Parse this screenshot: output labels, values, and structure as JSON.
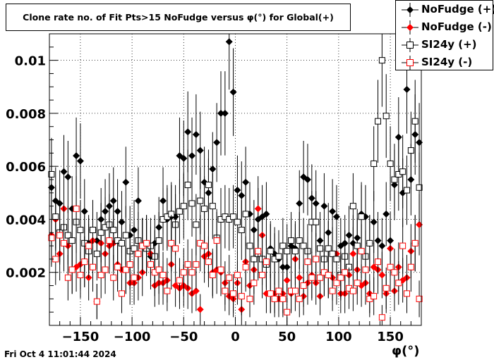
{
  "title": "Clone rate no. of Fit Pts>15 NoFudge versus φ(°) for Global(+)",
  "timestamp": "Fri Oct  4 11:01:44 2024",
  "chart_data": {
    "type": "scatter",
    "xlabel": "φ(°)",
    "ylabel": "",
    "xlim": [
      -180,
      180
    ],
    "ylim": [
      0,
      0.011
    ],
    "xticks": [
      -150,
      -100,
      -50,
      0,
      50,
      100,
      150
    ],
    "xtick_labels": [
      "−150",
      "−100",
      "−50",
      "0",
      "50",
      "100",
      "150"
    ],
    "yticks": [
      0.002,
      0.004,
      0.006,
      0.008,
      0.01
    ],
    "ytick_labels": [
      "0.002",
      "0.004",
      "0.006",
      "0.008",
      "0.01"
    ],
    "grid": true,
    "legend_position": "top-right",
    "series": [
      {
        "name": "NoFudge (+)",
        "marker": "filled-diamond",
        "color": "#000000",
        "x": [
          -178,
          -174,
          -170,
          -166,
          -162,
          -158,
          -154,
          -150,
          -146,
          -142,
          -138,
          -134,
          -130,
          -126,
          -122,
          -118,
          -114,
          -110,
          -106,
          -102,
          -98,
          -94,
          -90,
          -86,
          -82,
          -78,
          -74,
          -70,
          -66,
          -62,
          -58,
          -54,
          -50,
          -46,
          -42,
          -38,
          -34,
          -30,
          -26,
          -22,
          -18,
          -14,
          -10,
          -6,
          -2,
          2,
          6,
          10,
          14,
          18,
          22,
          26,
          30,
          34,
          38,
          42,
          46,
          50,
          54,
          58,
          62,
          66,
          70,
          74,
          78,
          82,
          86,
          90,
          94,
          98,
          102,
          106,
          110,
          114,
          118,
          122,
          126,
          130,
          134,
          138,
          142,
          146,
          150,
          154,
          158,
          162,
          166,
          170,
          174,
          178
        ],
        "y": [
          0.0052,
          0.0047,
          0.0046,
          0.0058,
          0.0056,
          0.0044,
          0.0064,
          0.0062,
          0.0043,
          0.0031,
          0.0036,
          0.0032,
          0.004,
          0.0043,
          0.0045,
          0.0047,
          0.0043,
          0.0039,
          0.0054,
          0.0034,
          0.0036,
          0.0047,
          0.003,
          0.0031,
          0.0026,
          0.0031,
          0.0037,
          0.0047,
          0.004,
          0.0041,
          0.0041,
          0.0064,
          0.0063,
          0.0073,
          0.0064,
          0.0072,
          0.0066,
          0.0054,
          0.005,
          0.0059,
          0.0069,
          0.008,
          0.008,
          0.0107,
          0.0088,
          0.0051,
          0.0049,
          0.0054,
          0.0042,
          0.0036,
          0.004,
          0.0041,
          0.0042,
          0.0029,
          0.0027,
          0.0025,
          0.0022,
          0.0022,
          0.003,
          0.0029,
          0.0046,
          0.0056,
          0.0055,
          0.0048,
          0.0046,
          0.0032,
          0.0045,
          0.0035,
          0.0043,
          0.0041,
          0.003,
          0.0031,
          0.0034,
          0.0031,
          0.0033,
          0.0042,
          0.0041,
          0.0031,
          0.0039,
          0.0032,
          0.003,
          0.0042,
          0.0032,
          0.0053,
          0.0071,
          0.005,
          0.0089,
          0.0055,
          0.0072,
          0.0069
        ]
      },
      {
        "name": "NoFudge (-)",
        "marker": "filled-diamond",
        "color": "#ff0000",
        "x": [
          -178,
          -174,
          -170,
          -166,
          -162,
          -158,
          -154,
          -150,
          -146,
          -142,
          -138,
          -134,
          -130,
          -126,
          -122,
          -118,
          -114,
          -110,
          -106,
          -102,
          -98,
          -94,
          -90,
          -86,
          -82,
          -78,
          -74,
          -70,
          -66,
          -62,
          -58,
          -54,
          -50,
          -46,
          -42,
          -38,
          -34,
          -30,
          -26,
          -22,
          -18,
          -14,
          -10,
          -6,
          -2,
          2,
          6,
          10,
          14,
          18,
          22,
          26,
          30,
          34,
          38,
          42,
          46,
          50,
          54,
          58,
          62,
          66,
          70,
          74,
          78,
          82,
          86,
          90,
          94,
          98,
          102,
          106,
          110,
          114,
          118,
          122,
          126,
          130,
          134,
          138,
          142,
          146,
          150,
          154,
          158,
          162,
          166,
          170,
          174,
          178
        ],
        "y": [
          0.0034,
          0.004,
          0.0027,
          0.0044,
          0.003,
          0.0021,
          0.0022,
          0.0023,
          0.0024,
          0.0018,
          0.0032,
          0.0009,
          0.0031,
          0.0027,
          0.003,
          0.0031,
          0.0023,
          0.0021,
          0.0021,
          0.0016,
          0.0016,
          0.0018,
          0.002,
          0.003,
          0.0027,
          0.0015,
          0.0016,
          0.0016,
          0.0017,
          0.0023,
          0.0015,
          0.0014,
          0.0015,
          0.0014,
          0.0012,
          0.0013,
          0.0006,
          0.0026,
          0.0027,
          0.002,
          0.0021,
          0.002,
          0.0016,
          0.0011,
          0.001,
          0.0016,
          0.0006,
          0.0024,
          0.0015,
          0.0021,
          0.0044,
          0.0034,
          0.0012,
          0.0012,
          0.0012,
          0.001,
          0.0012,
          0.0017,
          0.0012,
          0.0025,
          0.0018,
          0.0011,
          0.0016,
          0.0019,
          0.0016,
          0.0011,
          0.002,
          0.0019,
          0.0018,
          0.0027,
          0.0012,
          0.0012,
          0.0019,
          0.0027,
          0.0021,
          0.0015,
          0.0016,
          0.0012,
          0.0022,
          0.0021,
          0.0019,
          0.0012,
          0.0029,
          0.0013,
          0.0022,
          0.0017,
          0.0018,
          0.0028,
          0.0031,
          0.0038
        ]
      },
      {
        "name": "SI24y (+)",
        "marker": "open-square",
        "color": "#000000",
        "x": [
          -178,
          -174,
          -170,
          -166,
          -162,
          -158,
          -154,
          -150,
          -146,
          -142,
          -138,
          -134,
          -130,
          -126,
          -122,
          -118,
          -114,
          -110,
          -106,
          -102,
          -98,
          -94,
          -90,
          -86,
          -82,
          -78,
          -74,
          -70,
          -66,
          -62,
          -58,
          -54,
          -50,
          -46,
          -42,
          -38,
          -34,
          -30,
          -26,
          -22,
          -18,
          -14,
          -10,
          -6,
          -2,
          2,
          6,
          10,
          14,
          18,
          22,
          26,
          30,
          34,
          38,
          42,
          46,
          50,
          54,
          58,
          62,
          66,
          70,
          74,
          78,
          82,
          86,
          90,
          94,
          98,
          102,
          106,
          110,
          114,
          118,
          122,
          126,
          130,
          134,
          138,
          142,
          146,
          150,
          154,
          158,
          162,
          166,
          170,
          174,
          178
        ],
        "y": [
          0.0057,
          0.0041,
          0.0035,
          0.0037,
          0.0034,
          0.0032,
          0.0039,
          0.0036,
          0.0031,
          0.0028,
          0.0036,
          0.0027,
          0.0035,
          0.0037,
          0.0038,
          0.0036,
          0.0032,
          0.0031,
          0.0034,
          0.0028,
          0.0029,
          0.0032,
          0.003,
          0.0029,
          0.003,
          0.0026,
          0.0032,
          0.004,
          0.0041,
          0.0042,
          0.0038,
          0.0043,
          0.0045,
          0.0053,
          0.0046,
          0.0038,
          0.0047,
          0.0044,
          0.0053,
          0.0045,
          0.0033,
          0.004,
          0.0041,
          0.004,
          0.0041,
          0.0039,
          0.0036,
          0.0042,
          0.003,
          0.0025,
          0.0027,
          0.0025,
          0.0023,
          0.0028,
          0.0025,
          0.0026,
          0.003,
          0.0028,
          0.0032,
          0.0028,
          0.0032,
          0.003,
          0.0028,
          0.0039,
          0.0039,
          0.0029,
          0.0025,
          0.0029,
          0.0027,
          0.0025,
          0.0019,
          0.0026,
          0.0022,
          0.0045,
          0.003,
          0.0041,
          0.0026,
          0.0031,
          0.0061,
          0.0077,
          0.01,
          0.0079,
          0.0061,
          0.0055,
          0.0057,
          0.0058,
          0.0051,
          0.0066,
          0.0077,
          0.0052
        ]
      },
      {
        "name": "SI24y (-)",
        "marker": "open-square",
        "color": "#ff0000",
        "x": [
          -178,
          -174,
          -170,
          -166,
          -162,
          -158,
          -154,
          -150,
          -146,
          -142,
          -138,
          -134,
          -130,
          -126,
          -122,
          -118,
          -114,
          -110,
          -106,
          -102,
          -98,
          -94,
          -90,
          -86,
          -82,
          -78,
          -74,
          -70,
          -66,
          -62,
          -58,
          -54,
          -50,
          -46,
          -42,
          -38,
          -34,
          -30,
          -26,
          -22,
          -18,
          -14,
          -10,
          -6,
          -2,
          2,
          6,
          10,
          14,
          18,
          22,
          26,
          30,
          34,
          38,
          42,
          46,
          50,
          54,
          58,
          62,
          66,
          70,
          74,
          78,
          82,
          86,
          90,
          94,
          98,
          102,
          106,
          110,
          114,
          118,
          122,
          126,
          130,
          134,
          138,
          142,
          146,
          150,
          154,
          158,
          162,
          166,
          170,
          174,
          178
        ],
        "y": [
          0.0033,
          0.0025,
          0.0034,
          0.0031,
          0.0018,
          0.0021,
          0.0044,
          0.0019,
          0.0024,
          0.003,
          0.0022,
          0.0009,
          0.0019,
          0.0021,
          0.0032,
          0.0018,
          0.0022,
          0.0012,
          0.0021,
          0.0023,
          0.0018,
          0.0027,
          0.003,
          0.0031,
          0.0023,
          0.002,
          0.0021,
          0.0019,
          0.0013,
          0.0031,
          0.0029,
          0.0017,
          0.002,
          0.0023,
          0.002,
          0.0023,
          0.0031,
          0.003,
          0.0024,
          0.0019,
          0.0032,
          0.0021,
          0.0013,
          0.0018,
          0.0012,
          0.0019,
          0.0011,
          0.0022,
          0.001,
          0.0016,
          0.0028,
          0.0019,
          0.0024,
          0.0012,
          0.001,
          0.0013,
          0.001,
          0.0005,
          0.0013,
          0.0013,
          0.001,
          0.0015,
          0.0024,
          0.0018,
          0.0025,
          0.0018,
          0.002,
          0.0019,
          0.0013,
          0.0016,
          0.0018,
          0.002,
          0.0014,
          0.0013,
          0.0016,
          0.0028,
          0.0021,
          0.001,
          0.0011,
          0.0024,
          0.0003,
          0.0014,
          0.0022,
          0.002,
          0.0016,
          0.003,
          0.0012,
          0.0022,
          0.0031,
          0.001
        ]
      }
    ]
  }
}
